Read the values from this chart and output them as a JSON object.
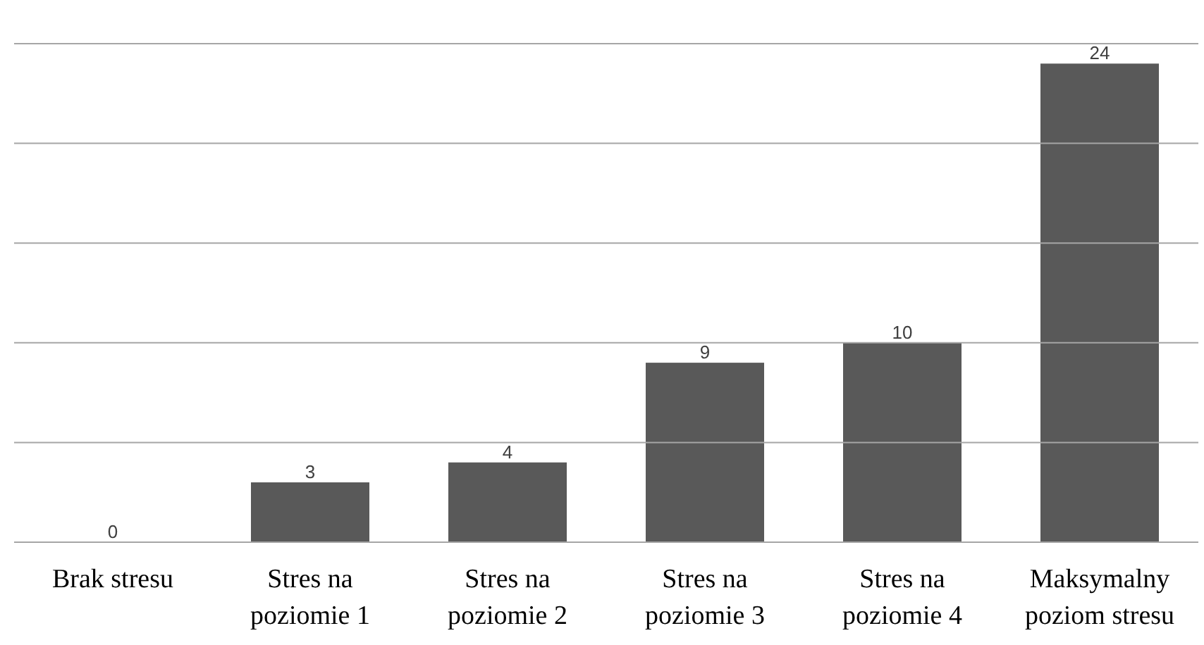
{
  "chart_data": {
    "type": "bar",
    "categories": [
      "Brak stresu",
      "Stres na poziomie 1",
      "Stres na poziomie 2",
      "Stres na poziomie 3",
      "Stres na poziomie 4",
      "Maksymalny poziom stresu"
    ],
    "values": [
      0,
      3,
      4,
      9,
      10,
      24
    ],
    "color": "#595959",
    "ylim": [
      0,
      25
    ],
    "yticks": [
      {
        "value": 0,
        "label": null
      },
      {
        "value": 5,
        "label": null
      },
      {
        "value": 10,
        "label": null
      },
      {
        "value": 15,
        "label": null
      },
      {
        "value": 20,
        "label": null
      },
      {
        "value": 25,
        "label": null
      }
    ],
    "grid": "y",
    "tick_labels": "x",
    "data_labels": true
  }
}
